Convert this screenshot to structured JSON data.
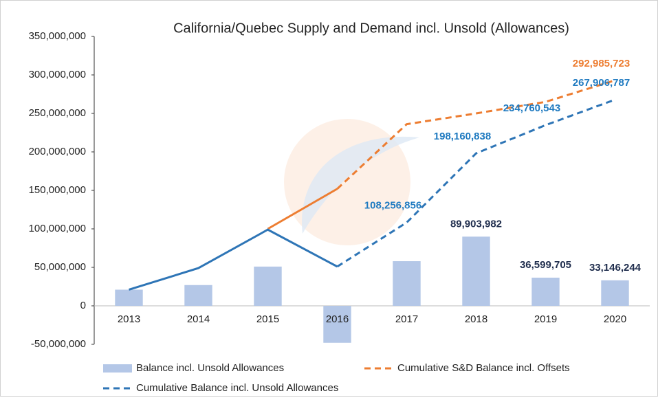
{
  "chart_data": {
    "type": "combo",
    "title": "California/Quebec Supply and Demand incl. Unsold (Allowances)",
    "categories": [
      "2013",
      "2014",
      "2015",
      "2016",
      "2017",
      "2018",
      "2019",
      "2020"
    ],
    "ylim": [
      -50000000,
      350000000
    ],
    "yticks": [
      {
        "value": -50000000,
        "label": "-50,000,000"
      },
      0,
      {
        "value": 50000000,
        "label": "50,000,000"
      },
      {
        "value": 100000000,
        "label": "100,000,000"
      },
      {
        "value": 150000000,
        "label": "150,000,000"
      },
      {
        "value": 200000000,
        "label": "200,000,000"
      },
      {
        "value": 250000000,
        "label": "250,000,000"
      },
      {
        "value": 300000000,
        "label": "300,000,000"
      },
      {
        "value": 350000000,
        "label": "350,000,000"
      }
    ],
    "grid": false,
    "legend": "bottom",
    "series": [
      {
        "name": "Balance incl. Unsold Allowances",
        "type": "bar",
        "color": "#b4c7e7",
        "label_color": "#1f2d4d",
        "values": [
          21000000,
          27000000,
          51000000,
          -48000000,
          58000000,
          89903982,
          36599705,
          33146244
        ],
        "value_labels": [
          null,
          null,
          null,
          null,
          null,
          "89,903,982",
          "36,599,705",
          "33,146,244"
        ]
      },
      {
        "name": "Cumulative S&D Balance incl. Offsets",
        "type": "line",
        "color": "#ed7d31",
        "label_color": "#ed7d31",
        "dashed_from": "2016",
        "values": [
          null,
          null,
          100000000,
          152000000,
          236000000,
          250000000,
          265000000,
          292985723
        ],
        "value_labels": [
          null,
          null,
          null,
          null,
          null,
          null,
          null,
          "292,985,723"
        ]
      },
      {
        "name": "Cumulative Balance incl. Unsold Allowances",
        "type": "line",
        "color": "#2e75b6",
        "label_color": "#1f7ac0",
        "dashed_from": "2016",
        "values": [
          21000000,
          49000000,
          99000000,
          51000000,
          108256856,
          198160838,
          234760543,
          267906787
        ],
        "value_labels": [
          null,
          null,
          null,
          null,
          "108,256,856",
          "198,160,838",
          "234,760,543",
          "267,906,787"
        ]
      }
    ]
  }
}
